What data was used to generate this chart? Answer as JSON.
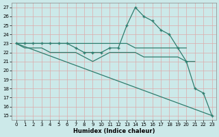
{
  "xlabel": "Humidex (Indice chaleur)",
  "background_color": "#cce9e9",
  "grid_color": "#ddaaaa",
  "line_color": "#2e7d6e",
  "xlim": [
    -0.5,
    23.5
  ],
  "ylim": [
    14.5,
    27.5
  ],
  "xticks": [
    0,
    1,
    2,
    3,
    4,
    5,
    6,
    7,
    8,
    9,
    10,
    11,
    12,
    13,
    14,
    15,
    16,
    17,
    18,
    19,
    20,
    21,
    22,
    23
  ],
  "yticks": [
    15,
    16,
    17,
    18,
    19,
    20,
    21,
    22,
    23,
    24,
    25,
    26,
    27
  ],
  "series": [
    {
      "x": [
        0,
        23
      ],
      "y": [
        23,
        15
      ],
      "marker": null,
      "linestyle": "-"
    },
    {
      "x": [
        0,
        1,
        2,
        3,
        4,
        5,
        6,
        7,
        8,
        9,
        10,
        11,
        12,
        13,
        14,
        15,
        16,
        17,
        18,
        19,
        20,
        21,
        22,
        23
      ],
      "y": [
        23,
        23,
        23,
        23,
        23,
        23,
        23,
        22.5,
        22,
        22,
        22,
        22.5,
        22.5,
        25,
        27,
        26,
        25.5,
        24.5,
        24,
        22.5,
        21,
        18,
        17.5,
        15
      ],
      "marker": "+",
      "linestyle": "-"
    },
    {
      "x": [
        0,
        1,
        2,
        3,
        4,
        5,
        6,
        7,
        8,
        9,
        10,
        11,
        12,
        13,
        14,
        15,
        16,
        17,
        18,
        19,
        20
      ],
      "y": [
        23,
        23,
        23,
        23,
        23,
        23,
        23,
        23,
        23,
        23,
        23,
        23,
        23,
        23,
        22.5,
        22.5,
        22.5,
        22.5,
        22.5,
        22.5,
        22.5
      ],
      "marker": null,
      "linestyle": "-"
    },
    {
      "x": [
        0,
        1,
        2,
        3,
        4,
        5,
        6,
        7,
        8,
        9,
        10,
        11,
        12,
        13,
        14,
        15,
        16,
        17,
        18,
        19,
        20,
        21
      ],
      "y": [
        23,
        22.5,
        22.5,
        22.5,
        22,
        22,
        22,
        22,
        21.5,
        21,
        21.5,
        22,
        22,
        22,
        22,
        21.5,
        21.5,
        21.5,
        21.5,
        21.5,
        21,
        21
      ],
      "marker": null,
      "linestyle": "-"
    }
  ]
}
